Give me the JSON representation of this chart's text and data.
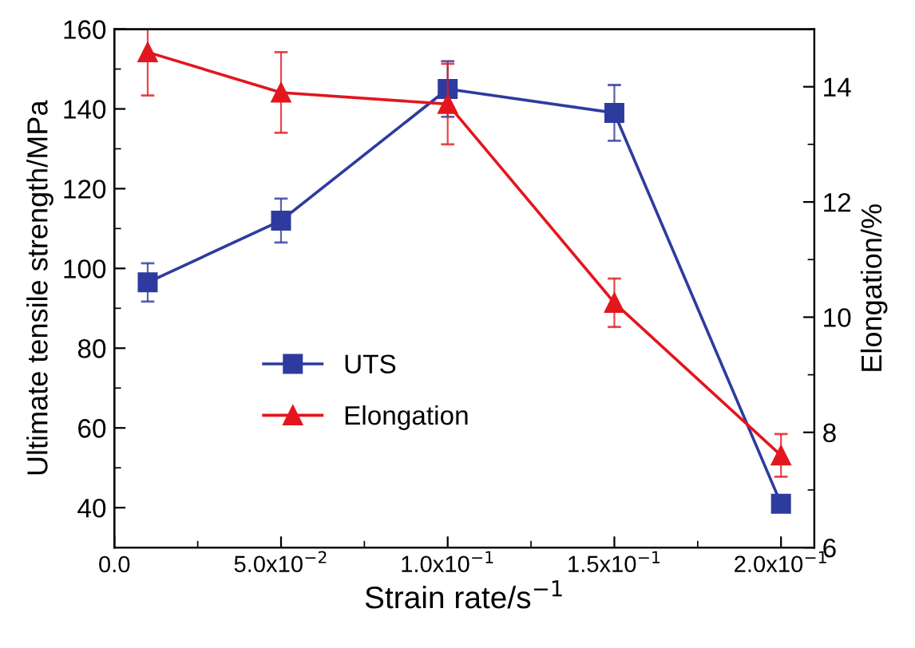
{
  "chart_data": {
    "type": "line",
    "xlabel": "Strain rate/s$^{−1}$",
    "ylabel": "Ultimate tensile strength/MPa",
    "y2label": "Elongation/%",
    "x": [
      0.01,
      0.05,
      0.1,
      0.15,
      0.2
    ],
    "series": [
      {
        "name": "UTS",
        "color": "#2e3b9e",
        "marker": "square",
        "values": [
          96.5,
          112,
          145,
          139,
          41
        ],
        "errors": [
          4.8,
          5.5,
          7,
          7,
          null
        ]
      },
      {
        "name": "Elongation",
        "color": "#e3161e",
        "marker": "triangle",
        "axis": "y2",
        "values": [
          14.6,
          13.9,
          13.7,
          10.25,
          7.6
        ],
        "errors": [
          0.75,
          0.7,
          0.7,
          0.42,
          0.37
        ]
      }
    ],
    "xlim": [
      0,
      0.21
    ],
    "xticks": [
      {
        "value": 0,
        "label": "0.0"
      },
      {
        "value": 0.05,
        "label": "5.0x10$^{−2}$"
      },
      {
        "value": 0.1,
        "label": "1.0x10$^{−1}$"
      },
      {
        "value": 0.15,
        "label": "1.5x10$^{−1}$"
      },
      {
        "value": 0.2,
        "label": "2.0x10$^{−1}$"
      }
    ],
    "ylim": [
      30,
      160
    ],
    "yticks": [
      40,
      60,
      80,
      100,
      120,
      140,
      160
    ],
    "y2lim": [
      6,
      15
    ],
    "y2ticks": [
      6,
      8,
      10,
      12,
      14
    ],
    "legend": "center",
    "grid": false,
    "line_style": "solid"
  }
}
